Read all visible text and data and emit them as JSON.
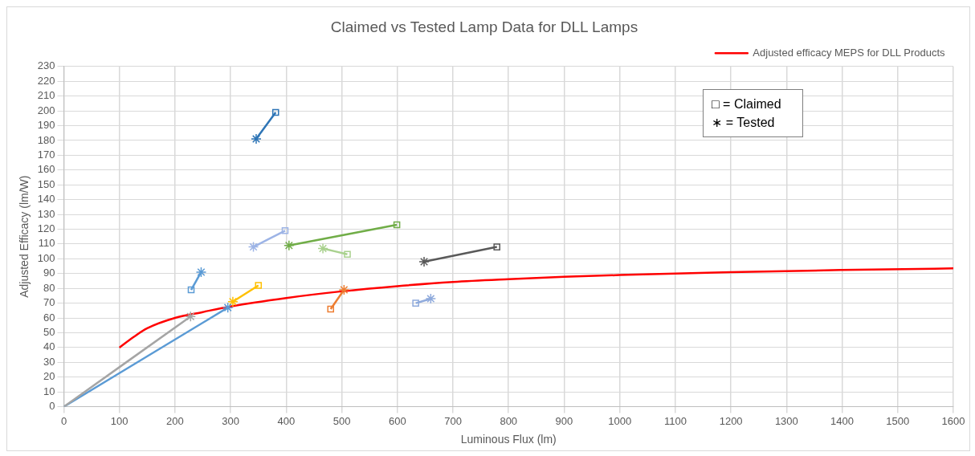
{
  "chart_data": {
    "type": "line",
    "title": "Claimed vs Tested Lamp Data for DLL Lamps",
    "xlabel": "Luminous Flux (lm)",
    "ylabel": "Adjusted Efficacy (lm/W)",
    "xlim": [
      0,
      1600
    ],
    "xticks": [
      0,
      100,
      200,
      300,
      400,
      500,
      600,
      700,
      800,
      900,
      1000,
      1100,
      1200,
      1300,
      1400,
      1500,
      1600
    ],
    "ylim": [
      0,
      230
    ],
    "yticks": [
      0,
      10,
      20,
      30,
      40,
      50,
      60,
      70,
      80,
      90,
      100,
      110,
      120,
      130,
      140,
      150,
      160,
      170,
      180,
      190,
      200,
      210,
      220,
      230
    ],
    "grid": true,
    "legend": "top right",
    "line_style": "solid",
    "annotations": [
      "□ = Claimed",
      "∗ = Tested"
    ],
    "series": [
      {
        "name": "Adjusted efficacy MEPS for DLL Products",
        "marker": "none",
        "color": "#ff0000",
        "x": [
          100,
          125,
          150,
          200,
          250,
          300,
          400,
          500,
          600,
          700,
          800,
          900,
          1000,
          1200,
          1400,
          1600
        ],
        "values": [
          40,
          47,
          53,
          60,
          64,
          67.8,
          73.5,
          78,
          81.5,
          84.3,
          86.2,
          87.8,
          89,
          91,
          92.4,
          93.5
        ]
      },
      {
        "marker": "none",
        "color": "#2e75b6",
        "x": [
          346,
          381
        ],
        "values": [
          181,
          199
        ]
      },
      {
        "marker": "none",
        "color": "#9db4e6",
        "x": [
          341,
          398
        ],
        "values": [
          108,
          119
        ]
      },
      {
        "marker": "none",
        "color": "#70ad47",
        "x": [
          405,
          599
        ],
        "values": [
          109,
          123
        ]
      },
      {
        "marker": "none",
        "color": "#a9d18e",
        "x": [
          466,
          510
        ],
        "values": [
          107,
          103
        ]
      },
      {
        "marker": "none",
        "color": "#595959",
        "x": [
          648,
          779
        ],
        "values": [
          98,
          108
        ]
      },
      {
        "marker": "none",
        "color": "#5b9bd5",
        "x": [
          229,
          247
        ],
        "values": [
          79,
          91
        ]
      },
      {
        "marker": "none",
        "color": "#ffc000",
        "x": [
          304,
          350
        ],
        "values": [
          71,
          82
        ]
      },
      {
        "marker": "none",
        "color": "#ed7d31",
        "x": [
          480,
          504
        ],
        "values": [
          66,
          79
        ]
      },
      {
        "marker": "none",
        "color": "#8faadc",
        "x": [
          633,
          660
        ],
        "values": [
          70,
          73
        ]
      },
      {
        "marker": "none",
        "color": "#a5a5a5",
        "x": [
          0,
          228
        ],
        "values": [
          0,
          61
        ]
      },
      {
        "marker": "none",
        "color": "#5b9bd5",
        "x": [
          0,
          295
        ],
        "values": [
          0,
          67
        ]
      },
      {
        "type": "scatter",
        "marker": "square",
        "x": [
          381,
          398,
          599,
          510,
          779,
          229,
          350,
          480,
          633
        ],
        "values": [
          199,
          119,
          123,
          103,
          108,
          79,
          82,
          66,
          70
        ],
        "colors": [
          "#2e75b6",
          "#9db4e6",
          "#70ad47",
          "#a9d18e",
          "#595959",
          "#5b9bd5",
          "#ffc000",
          "#ed7d31",
          "#8faadc"
        ]
      },
      {
        "type": "scatter",
        "marker": "cross",
        "x": [
          346,
          341,
          405,
          466,
          648,
          247,
          304,
          504,
          660,
          228,
          295
        ],
        "values": [
          181,
          108,
          109,
          107,
          98,
          91,
          71,
          79,
          73,
          61,
          67
        ],
        "colors": [
          "#2e75b6",
          "#9db4e6",
          "#70ad47",
          "#a9d18e",
          "#595959",
          "#5b9bd5",
          "#ffc000",
          "#ed7d31",
          "#8faadc",
          "#a5a5a5",
          "#5b9bd5"
        ]
      }
    ]
  }
}
